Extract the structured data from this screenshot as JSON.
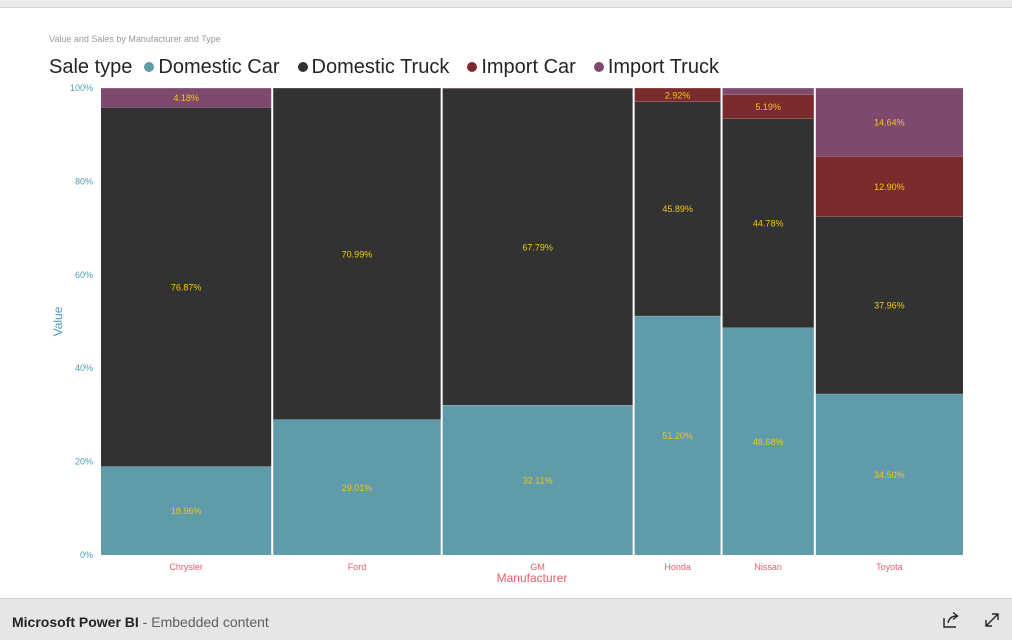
{
  "footer": {
    "brand": "Microsoft Power BI",
    "separator": " - ",
    "subtitle": "Embedded content"
  },
  "icons": [
    "share-icon",
    "expand-icon"
  ],
  "chart_data": {
    "type": "bar",
    "variant": "100% stacked mekko (variable-width)",
    "title": "Value and Sales by Manufacturer and Type",
    "legend_title": "Sale type",
    "legend_position": "top-left",
    "xlabel": "Manufacturer",
    "ylabel": "Value",
    "ylim": [
      0,
      100
    ],
    "y_ticks": [
      "0%",
      "20%",
      "40%",
      "60%",
      "80%",
      "100%"
    ],
    "grid": false,
    "categories": [
      "Chrysler",
      "Ford",
      "GM",
      "Honda",
      "Nissan",
      "Toyota"
    ],
    "category_share": [
      19.24,
      19.04,
      21.57,
      9.88,
      10.48,
      16.65
    ],
    "series": [
      {
        "name": "Domestic Car",
        "color": "#5f9bab",
        "values": [
          18.96,
          29.01,
          32.11,
          51.2,
          48.68,
          34.5
        ],
        "labels": [
          "18.96%",
          "29.01%",
          "32.11%",
          "51.20%",
          "48.68%",
          "34.50%"
        ]
      },
      {
        "name": "Domestic Truck",
        "color": "#323232",
        "values": [
          76.87,
          70.99,
          67.79,
          45.89,
          44.78,
          37.96
        ],
        "labels": [
          "76.87%",
          "70.99%",
          "67.79%",
          "45.89%",
          "44.78%",
          "37.96%"
        ]
      },
      {
        "name": "Import Car",
        "color": "#7b2b2d",
        "values": [
          0,
          0,
          0.1,
          2.92,
          5.19,
          12.9
        ],
        "labels": [
          "",
          "",
          "",
          "2.92%",
          "5.19%",
          "12.90%"
        ]
      },
      {
        "name": "Import Truck",
        "color": "#7d4a6e",
        "values": [
          4.18,
          0,
          0,
          0,
          1.35,
          14.64
        ],
        "labels": [
          "4.18%",
          "",
          "",
          "",
          "",
          "14.64%"
        ]
      }
    ],
    "colors": {
      "data_label": "#f2c80f",
      "axis_tick": "#4f9cb8",
      "category_label": "#f0586b",
      "axis_title_x": "#f0586b",
      "axis_title_y": "#4f9cb8"
    }
  }
}
